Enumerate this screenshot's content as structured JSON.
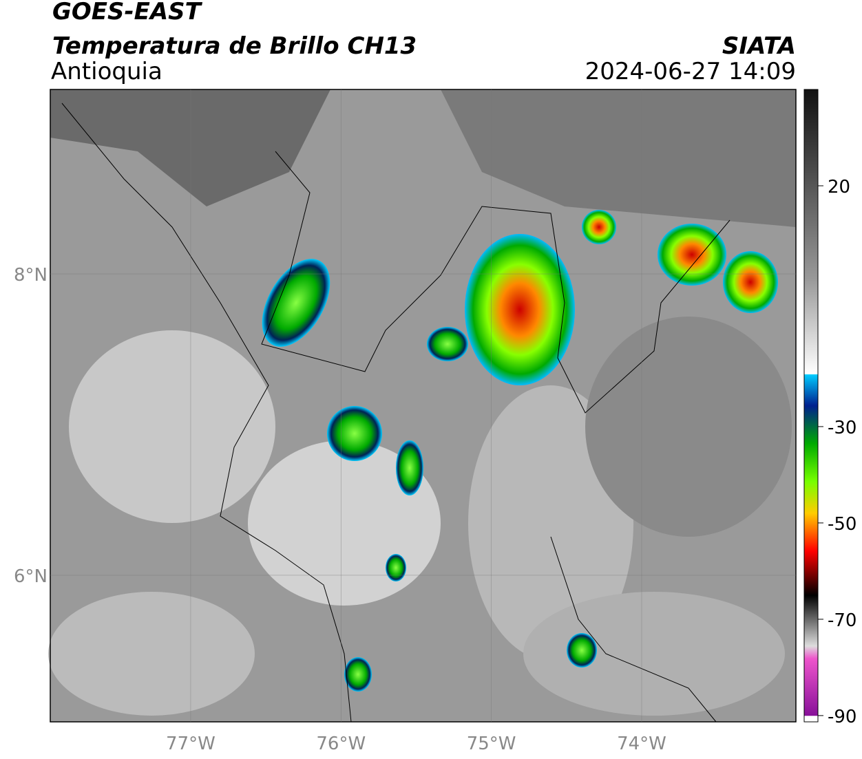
{
  "header": {
    "title": "GOES-EAST",
    "subtitle": "Temperatura de Brillo CH13",
    "region": "Antioquia",
    "source": "SIATA",
    "datetime": "2024-06-27 14:09"
  },
  "map": {
    "lonlim": [
      -77.934,
      -72.974
    ],
    "latlim": [
      9.224,
      5.027
    ],
    "lon_ticks": [
      {
        "value": -77,
        "label": "77°W"
      },
      {
        "value": -76,
        "label": "76°W"
      },
      {
        "value": -75,
        "label": "75°W"
      },
      {
        "value": -74,
        "label": "74°W"
      }
    ],
    "lat_ticks": [
      {
        "value": 8,
        "label": "8°N"
      },
      {
        "value": 6,
        "label": "6°N"
      }
    ]
  },
  "colorbar": {
    "lim": [
      40,
      -91.3
    ],
    "ticks": [
      20,
      -30,
      -50,
      -70,
      -90
    ]
  }
}
